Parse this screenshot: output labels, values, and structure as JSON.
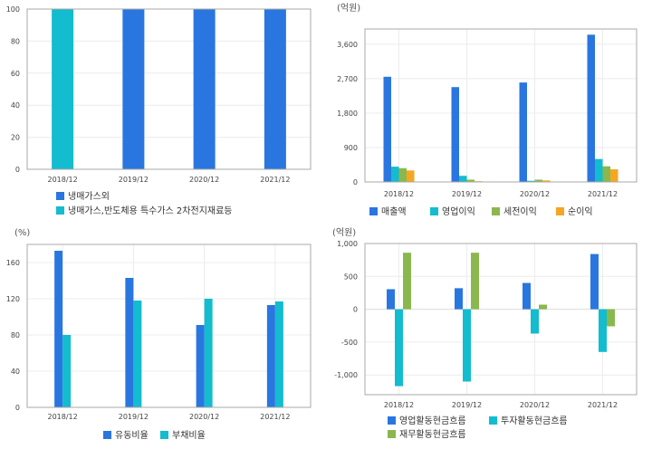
{
  "chart_data": [
    {
      "type": "bar",
      "categories": [
        "2018/12",
        "2019/12",
        "2020/12",
        "2021/12"
      ],
      "series": [
        {
          "name": "냉매가스외",
          "values": [
            0,
            100,
            100,
            100
          ],
          "color": "#2a76e0"
        },
        {
          "name": "냉매가스,반도체용 특수가스 2차전지재료등",
          "values": [
            100,
            0,
            0,
            0
          ],
          "color": "#13bccf"
        }
      ],
      "unit": "",
      "ylim": [
        0,
        100
      ],
      "yticks": [
        0,
        20,
        40,
        60,
        80,
        100
      ],
      "ytick_labels": [
        "0",
        "20",
        "40",
        "60",
        "80",
        "100"
      ],
      "stacked": true,
      "grid": true,
      "legend": "bottom"
    },
    {
      "type": "bar",
      "categories": [
        "2018/12",
        "2019/12",
        "2020/12",
        "2021/12"
      ],
      "series": [
        {
          "name": "매출액",
          "values": [
            2750,
            2480,
            2600,
            3850
          ],
          "color": "#2a76e0"
        },
        {
          "name": "영업이익",
          "values": [
            400,
            160,
            30,
            600
          ],
          "color": "#13bccf"
        },
        {
          "name": "세전이익",
          "values": [
            360,
            60,
            60,
            410
          ],
          "color": "#8ab84e"
        },
        {
          "name": "순이익",
          "values": [
            300,
            20,
            40,
            330
          ],
          "color": "#f5a623"
        }
      ],
      "unit": "(억원)",
      "ylim": [
        0,
        4000
      ],
      "yticks": [
        0,
        900,
        1800,
        2700,
        3600
      ],
      "ytick_labels": [
        "0",
        "900",
        "1,800",
        "2,700",
        "3,600"
      ],
      "grid": true,
      "legend": "bottom"
    },
    {
      "type": "bar",
      "categories": [
        "2018/12",
        "2019/12",
        "2020/12",
        "2021/12"
      ],
      "series": [
        {
          "name": "유동비율",
          "values": [
            173,
            143,
            91,
            113
          ],
          "color": "#2a76e0"
        },
        {
          "name": "부채비율",
          "values": [
            80,
            118,
            120,
            117
          ],
          "color": "#13bccf"
        }
      ],
      "unit": "(%)",
      "ylim": [
        0,
        180
      ],
      "yticks": [
        0,
        40,
        80,
        120,
        160
      ],
      "ytick_labels": [
        "0",
        "40",
        "80",
        "120",
        "160"
      ],
      "grid": true,
      "legend": "bottom"
    },
    {
      "type": "bar",
      "categories": [
        "2018/12",
        "2019/12",
        "2020/12",
        "2021/12"
      ],
      "series": [
        {
          "name": "영업활동현금흐름",
          "values": [
            305,
            320,
            400,
            840
          ],
          "color": "#2a76e0"
        },
        {
          "name": "투자활동현금흐름",
          "values": [
            -1170,
            -1100,
            -370,
            -650
          ],
          "color": "#13bccf"
        },
        {
          "name": "재무활동현금흐름",
          "values": [
            860,
            860,
            70,
            -260
          ],
          "color": "#8ab84e"
        }
      ],
      "unit": "(억원)",
      "ylim": [
        -1300,
        1000
      ],
      "yticks": [
        -1000,
        -500,
        0,
        500,
        1000
      ],
      "ytick_labels": [
        "-1,000",
        "-500",
        "0",
        "500",
        "1,000"
      ],
      "grid": true,
      "legend": "bottom"
    }
  ]
}
